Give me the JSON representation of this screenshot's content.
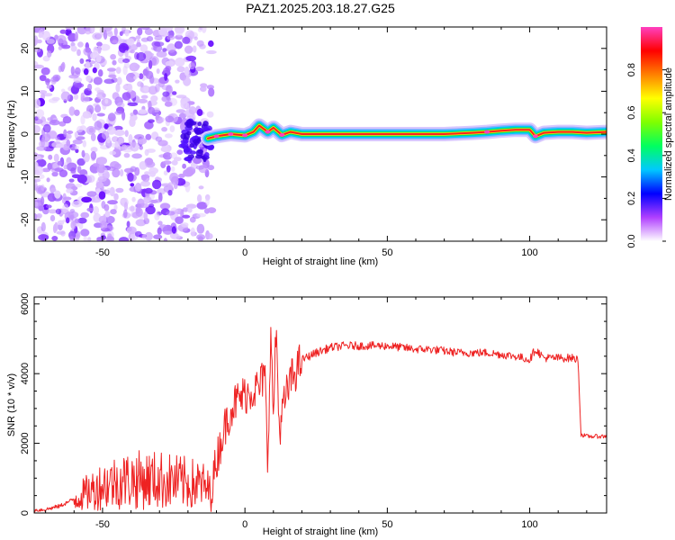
{
  "title": "PAZ1.2025.203.18.27.G25",
  "chart_data": [
    {
      "type": "heatmap",
      "xlabel": "Height of straight line (km)",
      "ylabel": "Frequency (Hz)",
      "xlim": [
        -74,
        127
      ],
      "ylim": [
        -25,
        25
      ],
      "x_ticks": [
        -50,
        0,
        50,
        100
      ],
      "y_ticks": [
        -20,
        -10,
        0,
        10,
        20
      ],
      "colorbar": {
        "label": "Normalized spectral amplitude",
        "range": [
          0,
          1
        ],
        "ticks": [
          0.0,
          0.2,
          0.4,
          0.6,
          0.8
        ],
        "tick_labels": [
          "0.0",
          "0.2",
          "0.4",
          "0.6",
          "0.8"
        ],
        "colormap": [
          "#ffffff",
          "#b040ff",
          "#0000ff",
          "#00c8ff",
          "#00ff60",
          "#80ff00",
          "#ffff00",
          "#ff8000",
          "#ff0000",
          "#ff40c0"
        ]
      },
      "ridge": {
        "x": [
          -13,
          -10,
          -5,
          0,
          3,
          5,
          8,
          10,
          13,
          16,
          20,
          30,
          40,
          50,
          60,
          70,
          80,
          85,
          90,
          95,
          100,
          102,
          105,
          110,
          115,
          120,
          127
        ],
        "y": [
          -1.0,
          -0.5,
          0.0,
          -0.3,
          0.5,
          2.0,
          0.5,
          1.5,
          -0.2,
          0.5,
          0.0,
          0.0,
          0.0,
          0.0,
          0.0,
          0.0,
          0.3,
          0.5,
          0.8,
          1.0,
          1.0,
          -0.5,
          0.3,
          0.5,
          0.5,
          0.3,
          0.5
        ]
      },
      "noise_region": {
        "x_range": [
          -74,
          -13
        ],
        "y_range": [
          -25,
          25
        ]
      }
    },
    {
      "type": "line",
      "xlabel": "Height of straight line (km)",
      "ylabel": "SNR (10 * v/v)",
      "xlim": [
        -74,
        127
      ],
      "ylim": [
        0,
        6200
      ],
      "x_ticks": [
        -50,
        0,
        50,
        100
      ],
      "y_ticks": [
        0,
        2000,
        4000,
        6000
      ],
      "series": [
        {
          "color": "#ee2222",
          "x": [
            -74,
            -70,
            -65,
            -60,
            -55,
            -50,
            -45,
            -40,
            -35,
            -30,
            -25,
            -20,
            -15,
            -12,
            -10,
            -8,
            -5,
            -3,
            0,
            2,
            5,
            7,
            8,
            9,
            10,
            11,
            12,
            14,
            16,
            18,
            20,
            25,
            30,
            35,
            40,
            45,
            50,
            55,
            60,
            65,
            70,
            75,
            80,
            85,
            90,
            95,
            100,
            102,
            105,
            110,
            115,
            117,
            118,
            120,
            127
          ],
          "y": [
            80,
            100,
            200,
            400,
            600,
            800,
            900,
            950,
            950,
            950,
            900,
            850,
            800,
            600,
            1500,
            2200,
            3000,
            3200,
            3400,
            3500,
            3600,
            4000,
            1400,
            5200,
            2800,
            5400,
            2400,
            3200,
            3800,
            4100,
            4400,
            4600,
            4750,
            4800,
            4800,
            4800,
            4800,
            4750,
            4700,
            4700,
            4650,
            4600,
            4600,
            4600,
            4550,
            4500,
            4400,
            4700,
            4450,
            4450,
            4450,
            4400,
            2250,
            2200,
            2200
          ]
        }
      ]
    }
  ]
}
